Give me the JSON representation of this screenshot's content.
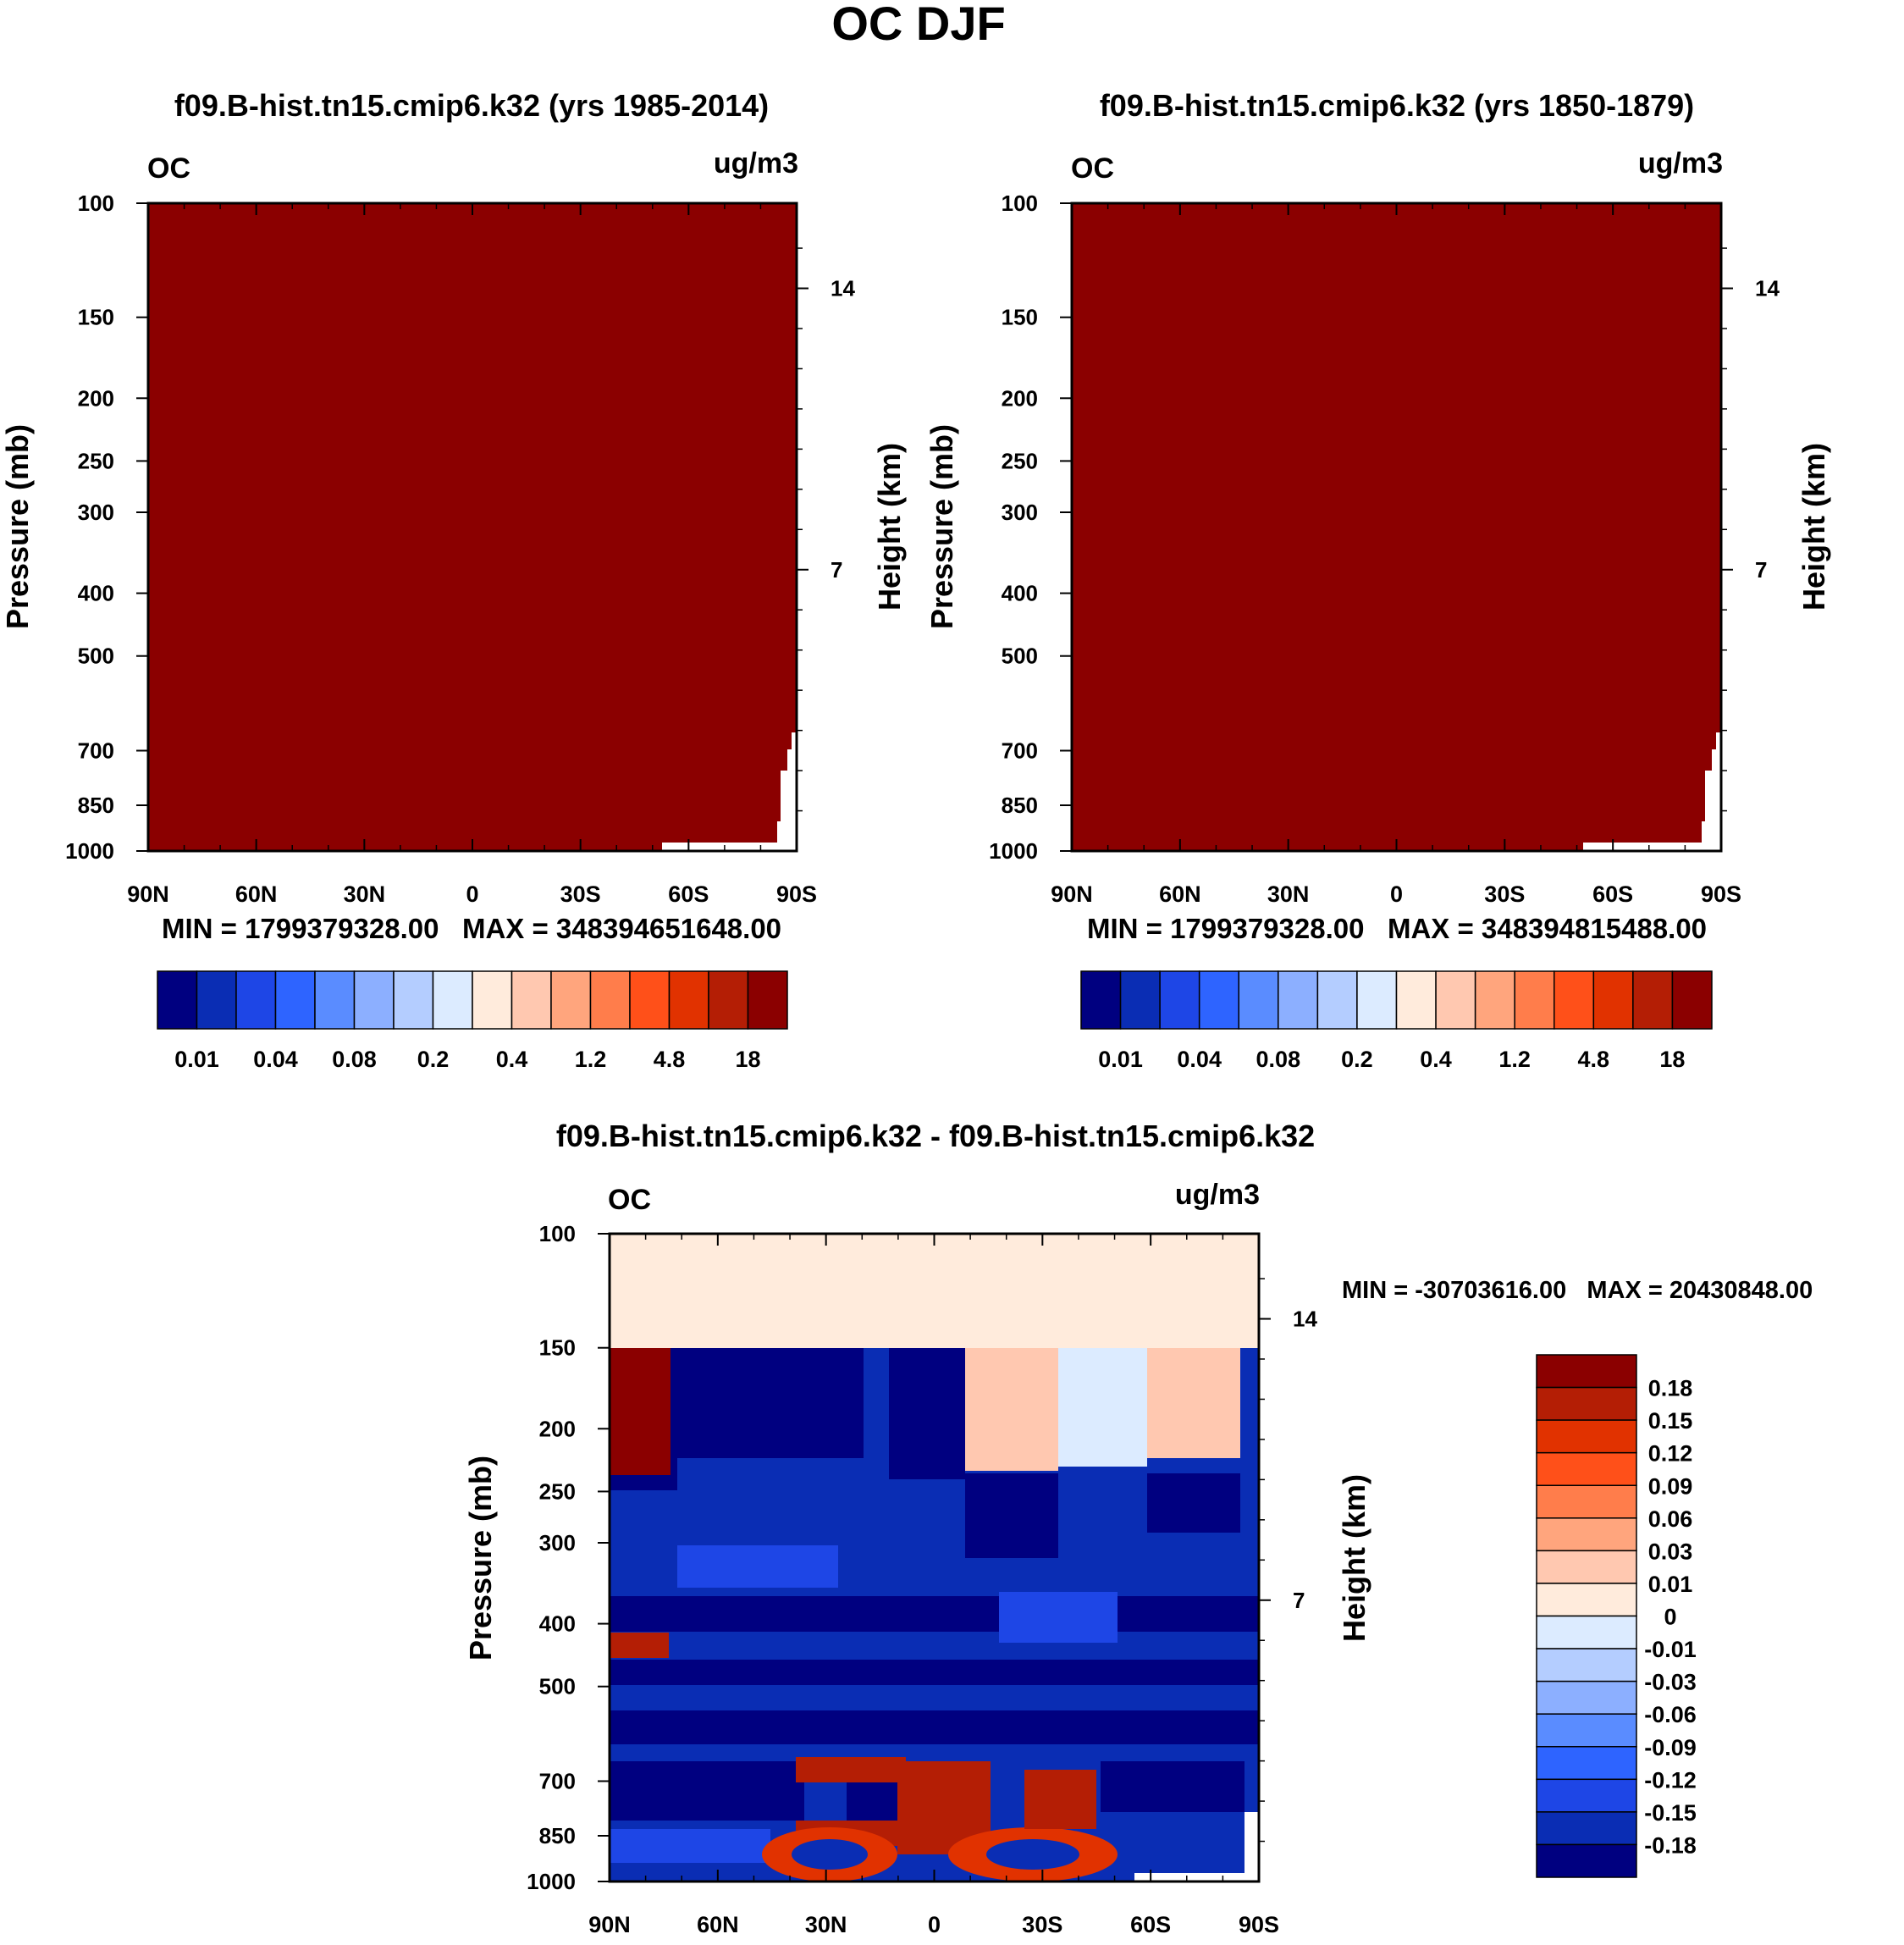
{
  "page": {
    "title": "OC DJF"
  },
  "chart_data": [
    {
      "type": "heatmap",
      "id": "panel1",
      "title": "f09.B-hist.tn15.cmip6.k32 (yrs 1985-2014)",
      "variable": "OC",
      "units": "ug/m3",
      "ylabel": "Pressure (mb)",
      "ylabel_right": "Height (km)",
      "xticks": [
        "90N",
        "60N",
        "30N",
        "0",
        "30S",
        "60S",
        "90S"
      ],
      "pressure_levels": [
        100,
        150,
        200,
        250,
        300,
        400,
        500,
        700,
        850,
        1000
      ],
      "height_ticks": [
        14,
        7
      ],
      "stats": "MIN = 1799379328.00   MAX = 348394651648.00",
      "fill_color": "#8B0000",
      "colorbar": {
        "orientation": "horizontal",
        "colors": [
          "#000080",
          "#0A2DB4",
          "#1E46E6",
          "#2E64FF",
          "#5A8CFF",
          "#8CAFFF",
          "#B4CDFF",
          "#DCEBFF",
          "#FFEBDC",
          "#FFC8B0",
          "#FFA57D",
          "#FF7D4B",
          "#FF5019",
          "#E13200",
          "#B41E05",
          "#8B0000"
        ],
        "labels": [
          "0.01",
          "0.04",
          "0.08",
          "0.2",
          "0.4",
          "1.2",
          "4.8",
          "18"
        ]
      }
    },
    {
      "type": "heatmap",
      "id": "panel2",
      "title": "f09.B-hist.tn15.cmip6.k32 (yrs 1850-1879)",
      "variable": "OC",
      "units": "ug/m3",
      "ylabel": "Pressure (mb)",
      "ylabel_right": "Height (km)",
      "xticks": [
        "90N",
        "60N",
        "30N",
        "0",
        "30S",
        "60S",
        "90S"
      ],
      "pressure_levels": [
        100,
        150,
        200,
        250,
        300,
        400,
        500,
        700,
        850,
        1000
      ],
      "height_ticks": [
        14,
        7
      ],
      "stats": "MIN = 1799379328.00   MAX = 348394815488.00",
      "fill_color": "#8B0000",
      "colorbar": {
        "orientation": "horizontal",
        "colors": [
          "#000080",
          "#0A2DB4",
          "#1E46E6",
          "#2E64FF",
          "#5A8CFF",
          "#8CAFFF",
          "#B4CDFF",
          "#DCEBFF",
          "#FFEBDC",
          "#FFC8B0",
          "#FFA57D",
          "#FF7D4B",
          "#FF5019",
          "#E13200",
          "#B41E05",
          "#8B0000"
        ],
        "labels": [
          "0.01",
          "0.04",
          "0.08",
          "0.2",
          "0.4",
          "1.2",
          "4.8",
          "18"
        ]
      }
    },
    {
      "type": "heatmap",
      "id": "panel3",
      "title": "f09.B-hist.tn15.cmip6.k32 - f09.B-hist.tn15.cmip6.k32",
      "variable": "OC",
      "units": "ug/m3",
      "ylabel": "Pressure (mb)",
      "ylabel_right": "Height (km)",
      "xticks": [
        "90N",
        "60N",
        "30N",
        "0",
        "30S",
        "60S",
        "90S"
      ],
      "pressure_levels": [
        100,
        150,
        200,
        250,
        300,
        400,
        500,
        700,
        850,
        1000
      ],
      "height_ticks": [
        14,
        7
      ],
      "stats": "MIN = -30703616.00   MAX = 20430848.00",
      "colorbar": {
        "orientation": "vertical",
        "colors_top_to_bottom": [
          "#8B0000",
          "#B41E05",
          "#E13200",
          "#FF5019",
          "#FF7D4B",
          "#FFA57D",
          "#FFC8B0",
          "#FFEBDC",
          "#DCEBFF",
          "#B4CDFF",
          "#8CAFFF",
          "#5A8CFF",
          "#2E64FF",
          "#1E46E6",
          "#0A2DB4",
          "#000080"
        ],
        "labels": [
          "0.18",
          "0.15",
          "0.12",
          "0.09",
          "0.06",
          "0.03",
          "0.01",
          "0",
          "-0.01",
          "-0.03",
          "-0.06",
          "-0.09",
          "-0.12",
          "-0.15",
          "-0.18"
        ]
      }
    }
  ]
}
